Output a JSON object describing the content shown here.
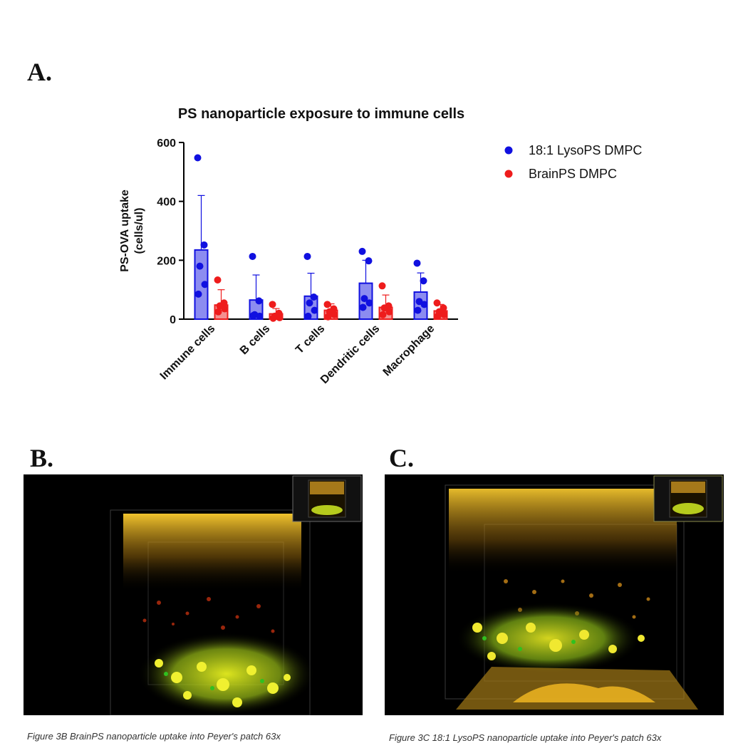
{
  "panels": {
    "a": "A.",
    "b": "B.",
    "c": "C."
  },
  "captions": {
    "b": "Figure 3B BrainPS nanoparticle uptake into Peyer's patch 63x",
    "c": "Figure 3C 18:1 LysoPS nanoparticle uptake into Peyer's patch 63x"
  },
  "chart_data": {
    "type": "bar",
    "title": "PS nanoparticle exposure to immune cells",
    "ylabel": "PS-OVA uptake (cells/ul)",
    "ylabel_lines": [
      "PS-OVA uptake",
      "(cells/ul)"
    ],
    "xlabel": "",
    "ylim": [
      0,
      600
    ],
    "yticks": [
      0,
      200,
      400,
      600
    ],
    "categories": [
      "Immune cells",
      "B cells",
      "T cells",
      "Dendritic cells",
      "Macrophage"
    ],
    "legend_position": "right",
    "series": [
      {
        "name": "18:1 LysoPS DMPC",
        "color": "#1010e0",
        "fill": "#8c8cf0",
        "values": [
          235,
          65,
          78,
          122,
          92
        ],
        "error": [
          185,
          85,
          78,
          78,
          65
        ],
        "points": [
          [
            548,
            252,
            180,
            118,
            85
          ],
          [
            213,
            62,
            15,
            10,
            12
          ],
          [
            213,
            75,
            55,
            30,
            10
          ],
          [
            230,
            198,
            70,
            55,
            40
          ],
          [
            190,
            130,
            60,
            50,
            30
          ]
        ]
      },
      {
        "name": "BrainPS DMPC",
        "color": "#ee1c1c",
        "fill": "#f49090",
        "values": [
          48,
          18,
          30,
          40,
          28
        ],
        "error": [
          52,
          18,
          22,
          42,
          22
        ],
        "points": [
          [
            133,
            55,
            45,
            35,
            25
          ],
          [
            50,
            20,
            10,
            5,
            3
          ],
          [
            50,
            35,
            25,
            15,
            8
          ],
          [
            113,
            45,
            38,
            25,
            15
          ],
          [
            55,
            38,
            25,
            15,
            10
          ]
        ]
      }
    ]
  },
  "images": {
    "b_alt": "BrainPS Peyer's patch 3D render",
    "c_alt": "18:1 LysoPS Peyer's patch 3D render"
  }
}
